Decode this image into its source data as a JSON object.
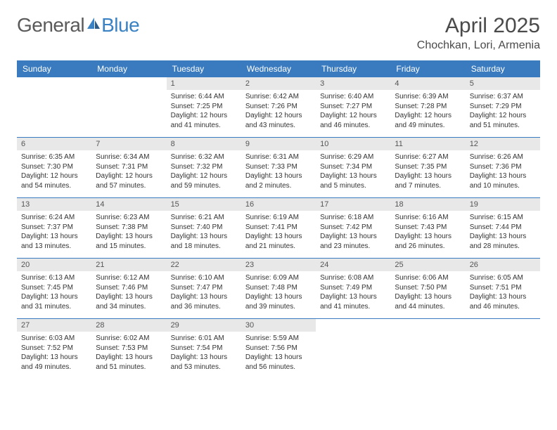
{
  "brand": {
    "part1": "General",
    "part2": "Blue"
  },
  "title": "April 2025",
  "location": "Chochkan, Lori, Armenia",
  "colors": {
    "header_bg": "#3a7bbf",
    "header_text": "#ffffff",
    "daynum_bg": "#e8e8e8",
    "brand_gray": "#5a5a5a",
    "brand_blue": "#3b82c4",
    "text": "#333333",
    "row_border": "#3a7bbf"
  },
  "weekdays": [
    "Sunday",
    "Monday",
    "Tuesday",
    "Wednesday",
    "Thursday",
    "Friday",
    "Saturday"
  ],
  "weeks": [
    [
      null,
      null,
      {
        "n": "1",
        "sr": "6:44 AM",
        "ss": "7:25 PM",
        "dl": "12 hours and 41 minutes."
      },
      {
        "n": "2",
        "sr": "6:42 AM",
        "ss": "7:26 PM",
        "dl": "12 hours and 43 minutes."
      },
      {
        "n": "3",
        "sr": "6:40 AM",
        "ss": "7:27 PM",
        "dl": "12 hours and 46 minutes."
      },
      {
        "n": "4",
        "sr": "6:39 AM",
        "ss": "7:28 PM",
        "dl": "12 hours and 49 minutes."
      },
      {
        "n": "5",
        "sr": "6:37 AM",
        "ss": "7:29 PM",
        "dl": "12 hours and 51 minutes."
      }
    ],
    [
      {
        "n": "6",
        "sr": "6:35 AM",
        "ss": "7:30 PM",
        "dl": "12 hours and 54 minutes."
      },
      {
        "n": "7",
        "sr": "6:34 AM",
        "ss": "7:31 PM",
        "dl": "12 hours and 57 minutes."
      },
      {
        "n": "8",
        "sr": "6:32 AM",
        "ss": "7:32 PM",
        "dl": "12 hours and 59 minutes."
      },
      {
        "n": "9",
        "sr": "6:31 AM",
        "ss": "7:33 PM",
        "dl": "13 hours and 2 minutes."
      },
      {
        "n": "10",
        "sr": "6:29 AM",
        "ss": "7:34 PM",
        "dl": "13 hours and 5 minutes."
      },
      {
        "n": "11",
        "sr": "6:27 AM",
        "ss": "7:35 PM",
        "dl": "13 hours and 7 minutes."
      },
      {
        "n": "12",
        "sr": "6:26 AM",
        "ss": "7:36 PM",
        "dl": "13 hours and 10 minutes."
      }
    ],
    [
      {
        "n": "13",
        "sr": "6:24 AM",
        "ss": "7:37 PM",
        "dl": "13 hours and 13 minutes."
      },
      {
        "n": "14",
        "sr": "6:23 AM",
        "ss": "7:38 PM",
        "dl": "13 hours and 15 minutes."
      },
      {
        "n": "15",
        "sr": "6:21 AM",
        "ss": "7:40 PM",
        "dl": "13 hours and 18 minutes."
      },
      {
        "n": "16",
        "sr": "6:19 AM",
        "ss": "7:41 PM",
        "dl": "13 hours and 21 minutes."
      },
      {
        "n": "17",
        "sr": "6:18 AM",
        "ss": "7:42 PM",
        "dl": "13 hours and 23 minutes."
      },
      {
        "n": "18",
        "sr": "6:16 AM",
        "ss": "7:43 PM",
        "dl": "13 hours and 26 minutes."
      },
      {
        "n": "19",
        "sr": "6:15 AM",
        "ss": "7:44 PM",
        "dl": "13 hours and 28 minutes."
      }
    ],
    [
      {
        "n": "20",
        "sr": "6:13 AM",
        "ss": "7:45 PM",
        "dl": "13 hours and 31 minutes."
      },
      {
        "n": "21",
        "sr": "6:12 AM",
        "ss": "7:46 PM",
        "dl": "13 hours and 34 minutes."
      },
      {
        "n": "22",
        "sr": "6:10 AM",
        "ss": "7:47 PM",
        "dl": "13 hours and 36 minutes."
      },
      {
        "n": "23",
        "sr": "6:09 AM",
        "ss": "7:48 PM",
        "dl": "13 hours and 39 minutes."
      },
      {
        "n": "24",
        "sr": "6:08 AM",
        "ss": "7:49 PM",
        "dl": "13 hours and 41 minutes."
      },
      {
        "n": "25",
        "sr": "6:06 AM",
        "ss": "7:50 PM",
        "dl": "13 hours and 44 minutes."
      },
      {
        "n": "26",
        "sr": "6:05 AM",
        "ss": "7:51 PM",
        "dl": "13 hours and 46 minutes."
      }
    ],
    [
      {
        "n": "27",
        "sr": "6:03 AM",
        "ss": "7:52 PM",
        "dl": "13 hours and 49 minutes."
      },
      {
        "n": "28",
        "sr": "6:02 AM",
        "ss": "7:53 PM",
        "dl": "13 hours and 51 minutes."
      },
      {
        "n": "29",
        "sr": "6:01 AM",
        "ss": "7:54 PM",
        "dl": "13 hours and 53 minutes."
      },
      {
        "n": "30",
        "sr": "5:59 AM",
        "ss": "7:56 PM",
        "dl": "13 hours and 56 minutes."
      },
      null,
      null,
      null
    ]
  ],
  "labels": {
    "sunrise": "Sunrise:",
    "sunset": "Sunset:",
    "daylight": "Daylight:"
  }
}
